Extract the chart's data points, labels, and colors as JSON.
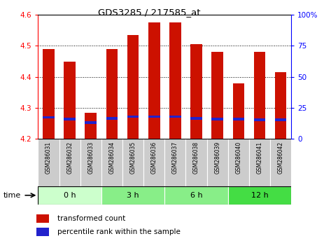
{
  "title": "GDS3285 / 217585_at",
  "samples": [
    "GSM286031",
    "GSM286032",
    "GSM286033",
    "GSM286034",
    "GSM286035",
    "GSM286036",
    "GSM286037",
    "GSM286038",
    "GSM286039",
    "GSM286040",
    "GSM286041",
    "GSM286042"
  ],
  "transformed_count": [
    4.49,
    4.45,
    4.285,
    4.49,
    4.535,
    4.575,
    4.575,
    4.505,
    4.48,
    4.38,
    4.48,
    4.415
  ],
  "bar_bottom": 4.2,
  "ylim_left": [
    4.2,
    4.6
  ],
  "ylim_right": [
    0,
    100
  ],
  "yticks_left": [
    4.2,
    4.3,
    4.4,
    4.5,
    4.6
  ],
  "yticks_right": [
    0,
    25,
    50,
    75,
    100
  ],
  "red_color": "#cc1100",
  "blue_color": "#2222cc",
  "bar_width": 0.55,
  "blue_bar_height": 0.008,
  "blue_bar_positions": [
    4.265,
    4.26,
    4.248,
    4.262,
    4.268,
    4.268,
    4.268,
    4.262,
    4.26,
    4.26,
    4.258,
    4.258
  ],
  "group_colors": [
    "#ccffcc",
    "#88ee88",
    "#88ee88",
    "#44dd44"
  ],
  "group_labels": [
    "0 h",
    "3 h",
    "6 h",
    "12 h"
  ],
  "group_ranges": [
    [
      0,
      3
    ],
    [
      3,
      6
    ],
    [
      6,
      9
    ],
    [
      9,
      12
    ]
  ],
  "sample_bg_color": "#cccccc",
  "gridline_y": [
    4.3,
    4.4,
    4.5
  ],
  "legend_items": [
    "transformed count",
    "percentile rank within the sample"
  ]
}
